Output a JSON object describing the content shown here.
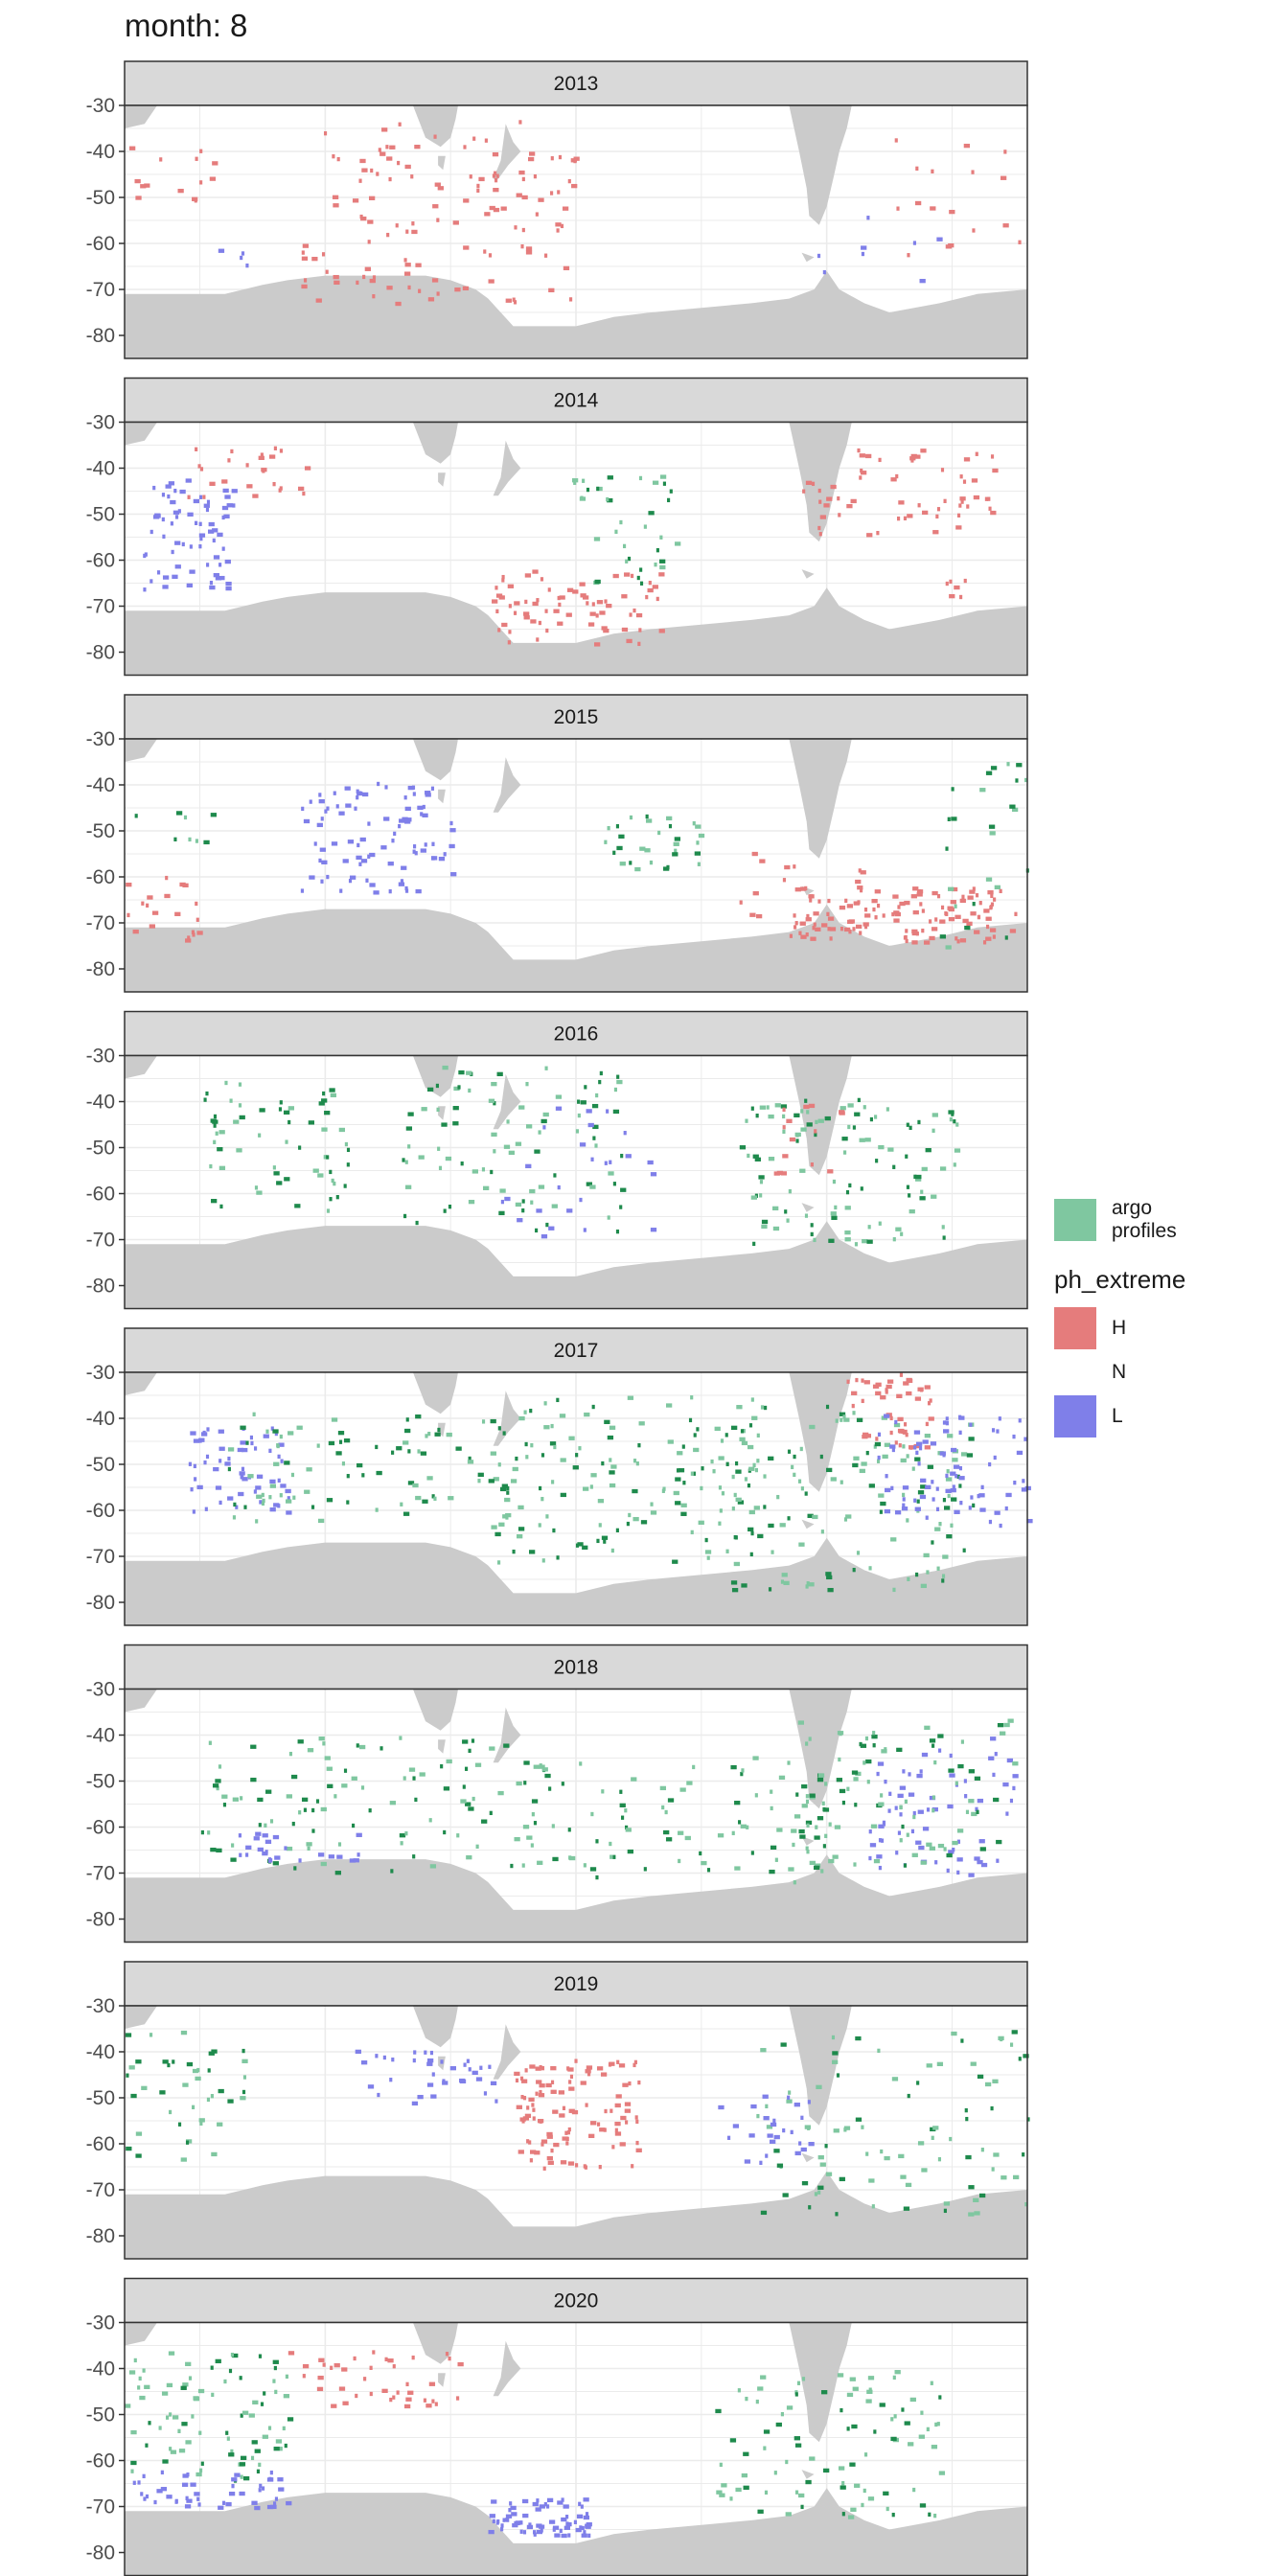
{
  "title": "month: 8",
  "legend": {
    "argo_label_line1": "argo",
    "argo_label_line2": "profiles",
    "ph_title": "ph_extreme",
    "items": [
      {
        "label": "H",
        "color": "#e57c7c"
      },
      {
        "label": "N",
        "color": ""
      },
      {
        "label": "L",
        "color": "#7f7fe9"
      }
    ],
    "argo_color": "#7fc7a0"
  },
  "colors": {
    "land": "#cbcbcb",
    "strip_bg": "#d9d9d9",
    "grid": "#ebebeb",
    "argo_dark": "#1e8a4c",
    "H": "#e57c7c",
    "L": "#7f7fe9"
  },
  "chart_data": {
    "type": "heatmap",
    "facet_by": "year",
    "panels": [
      "2013",
      "2014",
      "2015",
      "2016",
      "2017",
      "2018",
      "2019",
      "2020"
    ],
    "xlim": [
      20,
      380
    ],
    "ylim": [
      -85,
      -30
    ],
    "x_ticks": [
      100,
      200,
      300
    ],
    "y_ticks": [
      -30,
      -40,
      -50,
      -60,
      -70,
      -80
    ],
    "categories": [
      "H",
      "N",
      "L"
    ],
    "clusters": {
      "2013": [
        {
          "cat": "H",
          "lon": 35,
          "lat": -45,
          "w": 20,
          "h": 8,
          "n": 14
        },
        {
          "cat": "H",
          "lon": 145,
          "lat": -53,
          "w": 55,
          "h": 20,
          "n": 120
        },
        {
          "cat": "H",
          "lon": 125,
          "lat": -42,
          "w": 12,
          "h": 3,
          "n": 6
        },
        {
          "cat": "H",
          "lon": 350,
          "lat": -50,
          "w": 40,
          "h": 14,
          "n": 20
        },
        {
          "cat": "L",
          "lon": 63,
          "lat": -63,
          "w": 6,
          "h": 2,
          "n": 4
        },
        {
          "cat": "L",
          "lon": 320,
          "lat": -60,
          "w": 25,
          "h": 8,
          "n": 8
        }
      ],
      "2014": [
        {
          "cat": "L",
          "lon": 45,
          "lat": -54,
          "w": 18,
          "h": 12,
          "n": 70
        },
        {
          "cat": "H",
          "lon": 70,
          "lat": -40,
          "w": 25,
          "h": 6,
          "n": 25
        },
        {
          "cat": "H",
          "lon": 200,
          "lat": -70,
          "w": 35,
          "h": 8,
          "n": 70
        },
        {
          "cat": "H",
          "lon": 330,
          "lat": -45,
          "w": 40,
          "h": 10,
          "n": 60
        },
        {
          "cat": "argo",
          "lon": 220,
          "lat": -53,
          "w": 20,
          "h": 12,
          "n": 30
        },
        {
          "cat": "argo",
          "lon": 205,
          "lat": -43,
          "w": 8,
          "h": 3,
          "n": 6
        },
        {
          "cat": "H",
          "lon": 355,
          "lat": -66,
          "w": 10,
          "h": 2,
          "n": 6
        }
      ],
      "2015": [
        {
          "cat": "L",
          "lon": 120,
          "lat": -51,
          "w": 30,
          "h": 12,
          "n": 90
        },
        {
          "cat": "argo",
          "lon": 230,
          "lat": -52,
          "w": 20,
          "h": 6,
          "n": 30
        },
        {
          "cat": "H",
          "lon": 330,
          "lat": -68,
          "w": 45,
          "h": 6,
          "n": 120
        },
        {
          "cat": "argo",
          "lon": 365,
          "lat": -55,
          "w": 20,
          "h": 20,
          "n": 25
        },
        {
          "cat": "H",
          "lon": 35,
          "lat": -66,
          "w": 15,
          "h": 8,
          "n": 20
        },
        {
          "cat": "argo",
          "lon": 35,
          "lat": -48,
          "w": 25,
          "h": 5,
          "n": 12
        },
        {
          "cat": "H",
          "lon": 290,
          "lat": -62,
          "w": 25,
          "h": 8,
          "n": 20
        }
      ],
      "2016": [
        {
          "cat": "argo",
          "lon": 80,
          "lat": -50,
          "w": 30,
          "h": 15,
          "n": 60
        },
        {
          "cat": "argo",
          "lon": 175,
          "lat": -50,
          "w": 45,
          "h": 18,
          "n": 90
        },
        {
          "cat": "argo",
          "lon": 310,
          "lat": -55,
          "w": 45,
          "h": 16,
          "n": 110
        },
        {
          "cat": "L",
          "lon": 200,
          "lat": -55,
          "w": 30,
          "h": 14,
          "n": 25
        },
        {
          "cat": "H",
          "lon": 290,
          "lat": -48,
          "w": 15,
          "h": 8,
          "n": 15
        }
      ],
      "2017": [
        {
          "cat": "L",
          "lon": 65,
          "lat": -51,
          "w": 20,
          "h": 10,
          "n": 60
        },
        {
          "cat": "argo",
          "lon": 120,
          "lat": -50,
          "w": 60,
          "h": 12,
          "n": 90
        },
        {
          "cat": "argo",
          "lon": 220,
          "lat": -53,
          "w": 55,
          "h": 18,
          "n": 140
        },
        {
          "cat": "argo",
          "lon": 310,
          "lat": -57,
          "w": 50,
          "h": 20,
          "n": 130
        },
        {
          "cat": "H",
          "lon": 325,
          "lat": -38,
          "w": 18,
          "h": 8,
          "n": 50
        },
        {
          "cat": "L",
          "lon": 350,
          "lat": -51,
          "w": 30,
          "h": 12,
          "n": 80
        }
      ],
      "2018": [
        {
          "cat": "argo",
          "lon": 120,
          "lat": -55,
          "w": 70,
          "h": 15,
          "n": 110
        },
        {
          "cat": "L",
          "lon": 90,
          "lat": -64,
          "w": 25,
          "h": 3,
          "n": 25
        },
        {
          "cat": "argo",
          "lon": 240,
          "lat": -58,
          "w": 60,
          "h": 14,
          "n": 90
        },
        {
          "cat": "L",
          "lon": 345,
          "lat": -55,
          "w": 30,
          "h": 15,
          "n": 70
        },
        {
          "cat": "argo",
          "lon": 330,
          "lat": -52,
          "w": 45,
          "h": 16,
          "n": 90
        }
      ],
      "2019": [
        {
          "cat": "H",
          "lon": 200,
          "lat": -53,
          "w": 25,
          "h": 12,
          "n": 110
        },
        {
          "cat": "L",
          "lon": 145,
          "lat": -45,
          "w": 35,
          "h": 6,
          "n": 35
        },
        {
          "cat": "argo",
          "lon": 40,
          "lat": -50,
          "w": 30,
          "h": 15,
          "n": 50
        },
        {
          "cat": "argo",
          "lon": 330,
          "lat": -55,
          "w": 60,
          "h": 20,
          "n": 100
        },
        {
          "cat": "L",
          "lon": 275,
          "lat": -57,
          "w": 20,
          "h": 8,
          "n": 25
        }
      ],
      "2020": [
        {
          "cat": "argo",
          "lon": 45,
          "lat": -50,
          "w": 40,
          "h": 14,
          "n": 100
        },
        {
          "cat": "L",
          "lon": 50,
          "lat": -66,
          "w": 35,
          "h": 4,
          "n": 55
        },
        {
          "cat": "L",
          "lon": 185,
          "lat": -72,
          "w": 20,
          "h": 4,
          "n": 70
        },
        {
          "cat": "H",
          "lon": 120,
          "lat": -42,
          "w": 35,
          "h": 6,
          "n": 40
        },
        {
          "cat": "argo",
          "lon": 300,
          "lat": -56,
          "w": 45,
          "h": 16,
          "n": 90
        }
      ]
    }
  }
}
